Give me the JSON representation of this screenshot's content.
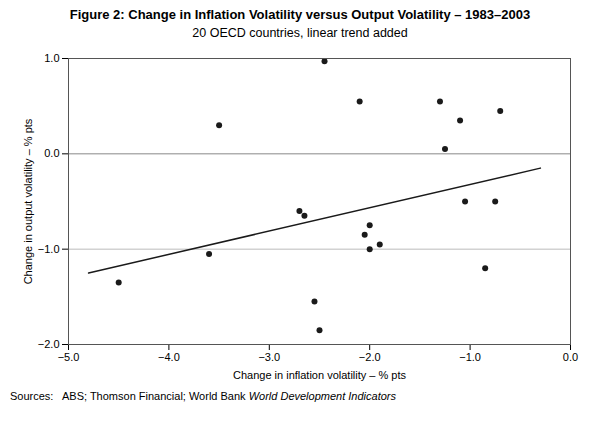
{
  "chart_data": {
    "type": "scatter",
    "title": "Figure 2: Change in Inflation Volatility versus Output Volatility – 1983–2003",
    "subtitle": "20 OECD countries, linear trend added",
    "xlabel": "Change in inflation volatility – % pts",
    "ylabel": "Change in output volatility – % pts",
    "annotations": [
      {
        "text": "Sources:   ABS; Thomson Financial; World Bank ",
        "style": "normal"
      },
      {
        "text": "World Development Indicators",
        "style": "italic"
      }
    ],
    "xlim": [
      -5,
      0
    ],
    "ylim": [
      -2,
      1
    ],
    "xticks": [
      -5,
      -4,
      -3,
      -2,
      -1,
      0
    ],
    "yticks": [
      -2,
      -1,
      0,
      1
    ],
    "reference_lines": [
      {
        "y": 0,
        "color": "#888888"
      },
      {
        "y": -1,
        "color": "#bbbbbb"
      }
    ],
    "series": [
      {
        "type": "scatter",
        "color": "#1a1a1a",
        "x": [
          -4.5,
          -3.6,
          -3.5,
          -2.7,
          -2.65,
          -2.55,
          -2.5,
          -2.45,
          -2.1,
          -2.05,
          -2.0,
          -2.0,
          -1.9,
          -1.3,
          -1.25,
          -1.1,
          -1.05,
          -0.85,
          -0.75,
          -0.7
        ],
        "values": [
          -1.35,
          -1.05,
          0.3,
          -0.6,
          -0.65,
          -1.55,
          -1.85,
          0.97,
          0.55,
          -0.85,
          -1.0,
          -0.75,
          -0.95,
          0.55,
          0.05,
          0.35,
          -0.5,
          -1.2,
          -0.5,
          0.45
        ]
      },
      {
        "type": "line",
        "color": "#1a1a1a",
        "x": [
          -4.8,
          -0.3
        ],
        "values": [
          -1.25,
          -0.15
        ]
      }
    ],
    "grid": false
  }
}
